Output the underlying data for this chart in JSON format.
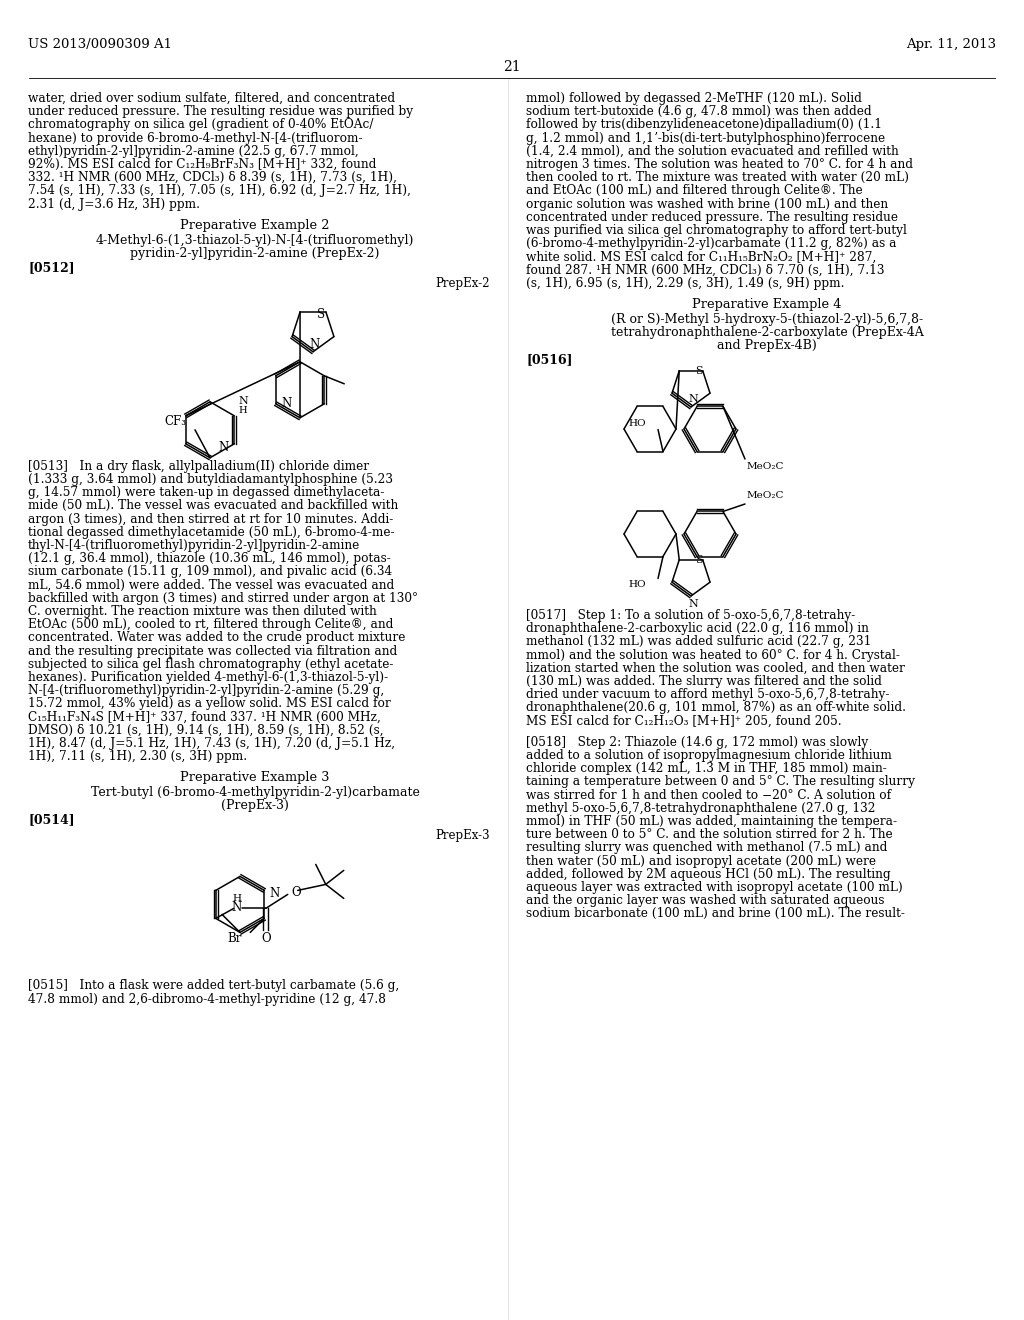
{
  "page_number": "21",
  "patent_number": "US 2013/0090309 A1",
  "patent_date": "Apr. 11, 2013",
  "background_color": "#ffffff",
  "text_color": "#000000",
  "left_col_top_text": [
    "water, dried over sodium sulfate, filtered, and concentrated",
    "under reduced pressure. The resulting residue was purified by",
    "chromatography on silica gel (gradient of 0-40% EtOAc/",
    "hexane) to provide 6-bromo-4-methyl-N-[4-(trifluorom-",
    "ethyl)pyridin-2-yl]pyridin-2-amine (22.5 g, 67.7 mmol,",
    "92%). MS ESI calcd for C₁₂H₉BrF₃N₃ [M+H]⁺ 332, found",
    "332. ¹H NMR (600 MHz, CDCl₃) δ 8.39 (s, 1H), 7.73 (s, 1H),",
    "7.54 (s, 1H), 7.33 (s, 1H), 7.05 (s, 1H), 6.92 (d, J=2.7 Hz, 1H),",
    "2.31 (d, J=3.6 Hz, 3H) ppm."
  ],
  "prep_ex2_title": "Preparative Example 2",
  "prep_ex2_sub1": "4-Methyl-6-(1,3-thiazol-5-yl)-N-[4-(trifluoromethyl)",
  "prep_ex2_sub2": "pyridin-2-yl]pyridin-2-amine (PrepEx-2)",
  "prep_ex2_para": "[0512]",
  "prep_ex2_label": "PrepEx-2",
  "left_col_mid_text": [
    "[0513]   In a dry flask, allylpalladium(II) chloride dimer",
    "(1.333 g, 3.64 mmol) and butyldiadamantylphosphine (5.23",
    "g, 14.57 mmol) were taken-up in degassed dimethylaceta-",
    "mide (50 mL). The vessel was evacuated and backfilled with",
    "argon (3 times), and then stirred at rt for 10 minutes. Addi-",
    "tional degassed dimethylacetamide (50 mL), 6-bromo-4-me-",
    "thyl-N-[4-(trifluoromethyl)pyridin-2-yl]pyridin-2-amine",
    "(12.1 g, 36.4 mmol), thiazole (10.36 mL, 146 mmol), potas-",
    "sium carbonate (15.11 g, 109 mmol), and pivalic acid (6.34",
    "mL, 54.6 mmol) were added. The vessel was evacuated and",
    "backfilled with argon (3 times) and stirred under argon at 130°",
    "C. overnight. The reaction mixture was then diluted with",
    "EtOAc (500 mL), cooled to rt, filtered through Celite®, and",
    "concentrated. Water was added to the crude product mixture",
    "and the resulting precipitate was collected via filtration and",
    "subjected to silica gel flash chromatography (ethyl acetate-",
    "hexanes). Purification yielded 4-methyl-6-(1,3-thiazol-5-yl)-",
    "N-[4-(trifluoromethyl)pyridin-2-yl]pyridin-2-amine (5.29 g,",
    "15.72 mmol, 43% yield) as a yellow solid. MS ESI calcd for",
    "C₁₅H₁₁F₃N₄S [M+H]⁺ 337, found 337. ¹H NMR (600 MHz,",
    "DMSO) δ 10.21 (s, 1H), 9.14 (s, 1H), 8.59 (s, 1H), 8.52 (s,",
    "1H), 8.47 (d, J=5.1 Hz, 1H), 7.43 (s, 1H), 7.20 (d, J=5.1 Hz,",
    "1H), 7.11 (s, 1H), 2.30 (s, 3H) ppm."
  ],
  "prep_ex3_title": "Preparative Example 3",
  "prep_ex3_sub1": "Tert-butyl (6-bromo-4-methylpyridin-2-yl)carbamate",
  "prep_ex3_sub2": "(PrepEx-3)",
  "prep_ex3_para": "[0514]",
  "prep_ex3_label": "PrepEx-3",
  "left_col_bot_text": [
    "[0515]   Into a flask were added tert-butyl carbamate (5.6 g,",
    "47.8 mmol) and 2,6-dibromo-4-methyl-pyridine (12 g, 47.8"
  ],
  "right_col_top_text": [
    "mmol) followed by degassed 2-MeTHF (120 mL). Solid",
    "sodium tert-butoxide (4.6 g, 47.8 mmol) was then added",
    "followed by tris(dibenzylideneacetone)dipalladium(0) (1.1",
    "g, 1.2 mmol) and 1,1ʼ-bis(di-tert-butylphosphino)ferrocene",
    "(1.4, 2.4 mmol), and the solution evacuated and refilled with",
    "nitrogen 3 times. The solution was heated to 70° C. for 4 h and",
    "then cooled to rt. The mixture was treated with water (20 mL)",
    "and EtOAc (100 mL) and filtered through Celite®. The",
    "organic solution was washed with brine (100 mL) and then",
    "concentrated under reduced pressure. The resulting residue",
    "was purified via silica gel chromatography to afford tert-butyl",
    "(6-bromo-4-methylpyridin-2-yl)carbamate (11.2 g, 82%) as a",
    "white solid. MS ESI calcd for C₁₁H₁₅BrN₂O₂ [M+H]⁺ 287,",
    "found 287. ¹H NMR (600 MHz, CDCl₃) δ 7.70 (s, 1H), 7.13",
    "(s, 1H), 6.95 (s, 1H), 2.29 (s, 3H), 1.49 (s, 9H) ppm."
  ],
  "prep_ex4_title": "Preparative Example 4",
  "prep_ex4_sub1": "(R or S)-Methyl 5-hydroxy-5-(thiazol-2-yl)-5,6,7,8-",
  "prep_ex4_sub2": "tetrahydronaphthalene-2-carboxylate (PrepEx-4A",
  "prep_ex4_sub3": "and PrepEx-4B)",
  "prep_ex4_para": "[0516]",
  "right_col_step1": [
    "[0517]   Step 1: To a solution of 5-oxo-5,6,7,8-tetrahy-",
    "dronaphthalene-2-carboxylic acid (22.0 g, 116 mmol) in",
    "methanol (132 mL) was added sulfuric acid (22.7 g, 231",
    "mmol) and the solution was heated to 60° C. for 4 h. Crystal-",
    "lization started when the solution was cooled, and then water",
    "(130 mL) was added. The slurry was filtered and the solid",
    "dried under vacuum to afford methyl 5-oxo-5,6,7,8-tetrahy-",
    "dronaphthalene(20.6 g, 101 mmol, 87%) as an off-white solid.",
    "MS ESI calcd for C₁₂H₁₂O₃ [M+H]⁺ 205, found 205."
  ],
  "right_col_step2": [
    "[0518]   Step 2: Thiazole (14.6 g, 172 mmol) was slowly",
    "added to a solution of isopropylmagnesium chloride lithium",
    "chloride complex (142 mL, 1.3 M in THF, 185 mmol) main-",
    "taining a temperature between 0 and 5° C. The resulting slurry",
    "was stirred for 1 h and then cooled to −20° C. A solution of",
    "methyl 5-oxo-5,6,7,8-tetrahydronaphthalene (27.0 g, 132",
    "mmol) in THF (50 mL) was added, maintaining the tempera-",
    "ture between 0 to 5° C. and the solution stirred for 2 h. The",
    "resulting slurry was quenched with methanol (7.5 mL) and",
    "then water (50 mL) and isopropyl acetate (200 mL) were",
    "added, followed by 2M aqueous HCl (50 mL). The resulting",
    "aqueous layer was extracted with isopropyl acetate (100 mL)",
    "and the organic layer was washed with saturated aqueous",
    "sodium bicarbonate (100 mL) and brine (100 mL). The result-"
  ]
}
